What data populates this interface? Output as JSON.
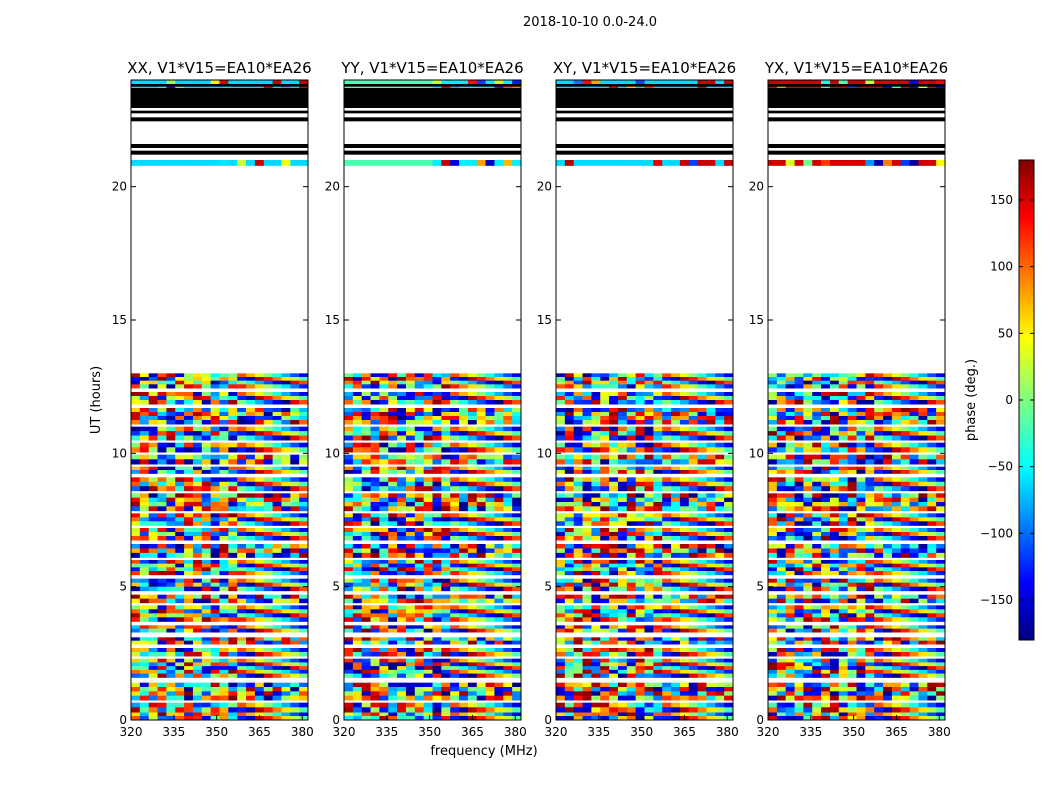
{
  "chart_data": {
    "type": "heatmap",
    "suptitle": "2018-10-10 0.0-24.0",
    "xlabel": "frequency (MHz)",
    "ylabel": "UT (hours)",
    "xlim": [
      320,
      382
    ],
    "ylim": [
      0,
      24
    ],
    "xticks": [
      320,
      335,
      350,
      365,
      380
    ],
    "yticks": [
      0,
      5,
      10,
      15,
      20
    ],
    "colorbar": {
      "label": "phase (deg.)",
      "range": [
        -180,
        180
      ],
      "ticks": [
        -150,
        -100,
        -50,
        0,
        50,
        100,
        150
      ],
      "colormap": "jet"
    },
    "panels": [
      {
        "title": "XX, V1*V15=EA10*EA26",
        "tint": "#1f7fe0"
      },
      {
        "title": "YY, V1*V15=EA10*EA26",
        "tint": "#40e8b0"
      },
      {
        "title": "XY, V1*V15=EA10*EA26",
        "tint": "#2a6fd8"
      },
      {
        "title": "YX, V1*V15=EA10*EA26",
        "tint": "#c0201c"
      }
    ],
    "data_bands_ut": [
      [
        0.0,
        0.3
      ],
      [
        0.3,
        0.65
      ],
      [
        0.75,
        1.4
      ],
      [
        1.6,
        2.3
      ],
      [
        2.4,
        2.7
      ],
      [
        2.85,
        3.1
      ],
      [
        3.3,
        3.55
      ],
      [
        3.7,
        4.3
      ],
      [
        4.4,
        4.7
      ],
      [
        4.85,
        5.3
      ],
      [
        5.45,
        6.0
      ],
      [
        6.1,
        6.6
      ],
      [
        6.75,
        7.2
      ],
      [
        7.3,
        7.75
      ],
      [
        7.85,
        8.5
      ],
      [
        8.6,
        9.1
      ],
      [
        9.25,
        9.5
      ],
      [
        9.6,
        9.95
      ],
      [
        10.05,
        10.4
      ],
      [
        10.5,
        11.0
      ],
      [
        11.1,
        11.7
      ],
      [
        11.85,
        12.3
      ],
      [
        12.45,
        13.0
      ],
      [
        20.8,
        21.0
      ],
      [
        23.5,
        24.0
      ]
    ],
    "flag_bands_ut": [
      [
        21.2,
        21.35
      ],
      [
        21.45,
        21.6
      ],
      [
        22.45,
        22.6
      ],
      [
        22.75,
        22.85
      ],
      [
        22.95,
        23.7
      ],
      [
        23.75,
        23.85
      ]
    ]
  }
}
